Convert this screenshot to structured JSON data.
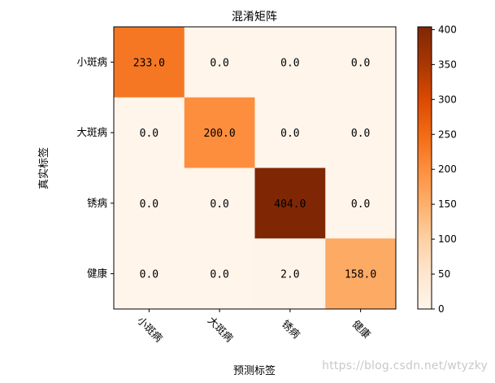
{
  "chart_data": {
    "type": "heatmap",
    "title": "混淆矩阵",
    "xlabel": "预测标签",
    "ylabel": "真实标签",
    "x_categories": [
      "小斑病",
      "大斑病",
      "锈病",
      "健康"
    ],
    "y_categories": [
      "小斑病",
      "大斑病",
      "锈病",
      "健康"
    ],
    "values": [
      [
        233.0,
        0.0,
        0.0,
        0.0
      ],
      [
        0.0,
        200.0,
        0.0,
        0.0
      ],
      [
        0.0,
        0.0,
        404.0,
        0.0
      ],
      [
        0.0,
        0.0,
        2.0,
        158.0
      ]
    ],
    "cell_labels": [
      [
        "233.0",
        "0.0",
        "0.0",
        "0.0"
      ],
      [
        "0.0",
        "200.0",
        "0.0",
        "0.0"
      ],
      [
        "0.0",
        "0.0",
        "404.0",
        "0.0"
      ],
      [
        "0.0",
        "0.0",
        "2.0",
        "158.0"
      ]
    ],
    "colormap": "Oranges",
    "color_range": [
      0,
      404
    ],
    "colorbar_ticks": [
      0,
      50,
      100,
      150,
      200,
      250,
      300,
      350,
      400
    ],
    "x_tick_rotation_deg": -45,
    "grid": false
  },
  "watermark": "https://blog.csdn.net/wtyzky"
}
